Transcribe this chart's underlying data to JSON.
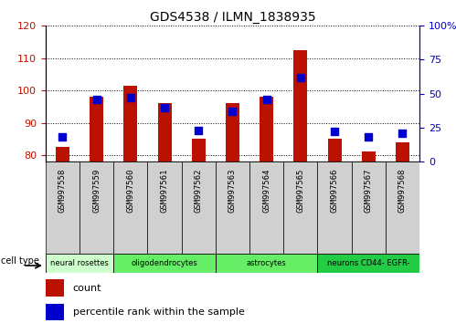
{
  "title": "GDS4538 / ILMN_1838935",
  "samples": [
    "GSM997558",
    "GSM997559",
    "GSM997560",
    "GSM997561",
    "GSM997562",
    "GSM997563",
    "GSM997564",
    "GSM997565",
    "GSM997566",
    "GSM997567",
    "GSM997568"
  ],
  "count_values": [
    82.5,
    98.0,
    101.5,
    96.0,
    85.0,
    96.0,
    98.0,
    112.5,
    85.0,
    81.0,
    84.0
  ],
  "percentile_values": [
    18,
    46,
    47,
    40,
    23,
    37,
    46,
    62,
    22,
    18,
    21
  ],
  "cell_types": [
    {
      "label": "neural rosettes",
      "start": 0,
      "end": 2,
      "color": "#ccffcc"
    },
    {
      "label": "oligodendrocytes",
      "start": 2,
      "end": 5,
      "color": "#66ee66"
    },
    {
      "label": "astrocytes",
      "start": 5,
      "end": 8,
      "color": "#66ee66"
    },
    {
      "label": "neurons CD44- EGFR-",
      "start": 8,
      "end": 11,
      "color": "#22cc44"
    }
  ],
  "ylim_left": [
    78,
    120
  ],
  "ylim_right": [
    0,
    100
  ],
  "yticks_left": [
    80,
    90,
    100,
    110,
    120
  ],
  "yticks_right": [
    0,
    25,
    50,
    75,
    100
  ],
  "bar_color": "#bb1100",
  "dot_color": "#0000cc",
  "bar_width": 0.4,
  "dot_size": 28,
  "grid_color": "black",
  "tick_label_bg": "#d0d0d0",
  "plot_bg": "#ffffff"
}
